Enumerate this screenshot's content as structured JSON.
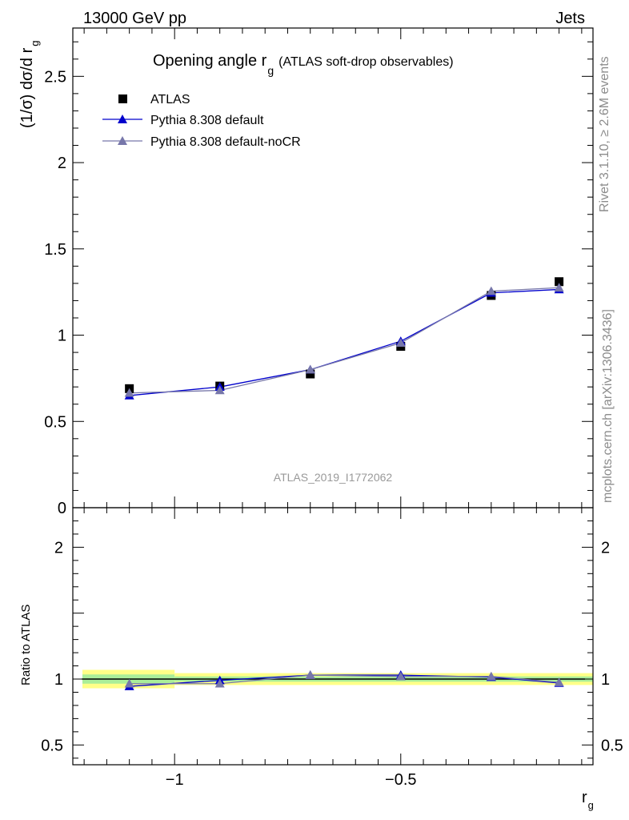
{
  "header": {
    "left": "13000 GeV pp",
    "right": "Jets"
  },
  "side_labels": {
    "rivet": "Rivet 3.1.10, ≥ 2.6M events",
    "mcplots": "mcplots.cern.ch [arXiv:1306.3436]"
  },
  "chart_data": [
    {
      "type": "scatter",
      "panel": "main",
      "title": "Opening angle r",
      "title_sub": "g",
      "title_suffix": "(ATLAS soft-drop observables)",
      "watermark": "ATLAS_2019_I1772062",
      "ylabel": "(1/σ) dσ/d r",
      "ylabel_sub": "g",
      "xlim": [
        -1.225,
        -0.075
      ],
      "ylim": [
        0,
        2.78
      ],
      "yticks": [
        0,
        0.5,
        1,
        1.5,
        2,
        2.5
      ],
      "ytick_labels": [
        "0",
        "0.5",
        "1",
        "1.5",
        "2",
        "2.5"
      ],
      "legend_position": "top-left",
      "series": [
        {
          "name": "ATLAS",
          "color": "#000000",
          "marker": "square",
          "x": [
            -1.1,
            -0.9,
            -0.7,
            -0.5,
            -0.3,
            -0.15
          ],
          "y": [
            0.69,
            0.705,
            0.775,
            0.935,
            1.23,
            1.31
          ]
        },
        {
          "name": "Pythia 8.308 default",
          "color": "#0000cc",
          "marker": "triangle",
          "x": [
            -1.1,
            -0.9,
            -0.7,
            -0.5,
            -0.3,
            -0.15
          ],
          "y": [
            0.65,
            0.7,
            0.8,
            0.965,
            1.245,
            1.265
          ]
        },
        {
          "name": "Pythia 8.308 default-noCR",
          "color": "#7777aa",
          "marker": "triangle",
          "x": [
            -1.1,
            -0.9,
            -0.7,
            -0.5,
            -0.3,
            -0.15
          ],
          "y": [
            0.665,
            0.68,
            0.8,
            0.955,
            1.255,
            1.275
          ]
        }
      ]
    },
    {
      "type": "scatter",
      "panel": "ratio",
      "xlabel": "r",
      "xlabel_sub": "g",
      "ylabel": "Ratio to ATLAS",
      "xlim": [
        -1.225,
        -0.075
      ],
      "ylim": [
        0.35,
        2.3
      ],
      "xticks": [
        -1,
        -0.5
      ],
      "xtick_labels": [
        "−1",
        "−0.5"
      ],
      "yticks": [
        0.5,
        1,
        2
      ],
      "ytick_labels": [
        "0.5",
        "1",
        "2"
      ],
      "bands": [
        {
          "x0": -1.225,
          "x1": -1.0,
          "stat": 0.035,
          "total": 0.07
        },
        {
          "x0": -1.0,
          "x1": -0.075,
          "stat": 0.02,
          "total": 0.045
        }
      ],
      "series": [
        {
          "name": "Pythia 8.308 default",
          "color": "#0000cc",
          "marker": "triangle",
          "x": [
            -1.1,
            -0.9,
            -0.7,
            -0.5,
            -0.3,
            -0.15
          ],
          "y": [
            0.945,
            0.99,
            1.03,
            1.03,
            1.015,
            0.97
          ]
        },
        {
          "name": "Pythia 8.308 default-noCR",
          "color": "#7777aa",
          "marker": "triangle",
          "x": [
            -1.1,
            -0.9,
            -0.7,
            -0.5,
            -0.3,
            -0.15
          ],
          "y": [
            0.965,
            0.965,
            1.03,
            1.02,
            1.02,
            0.975
          ]
        }
      ]
    }
  ]
}
